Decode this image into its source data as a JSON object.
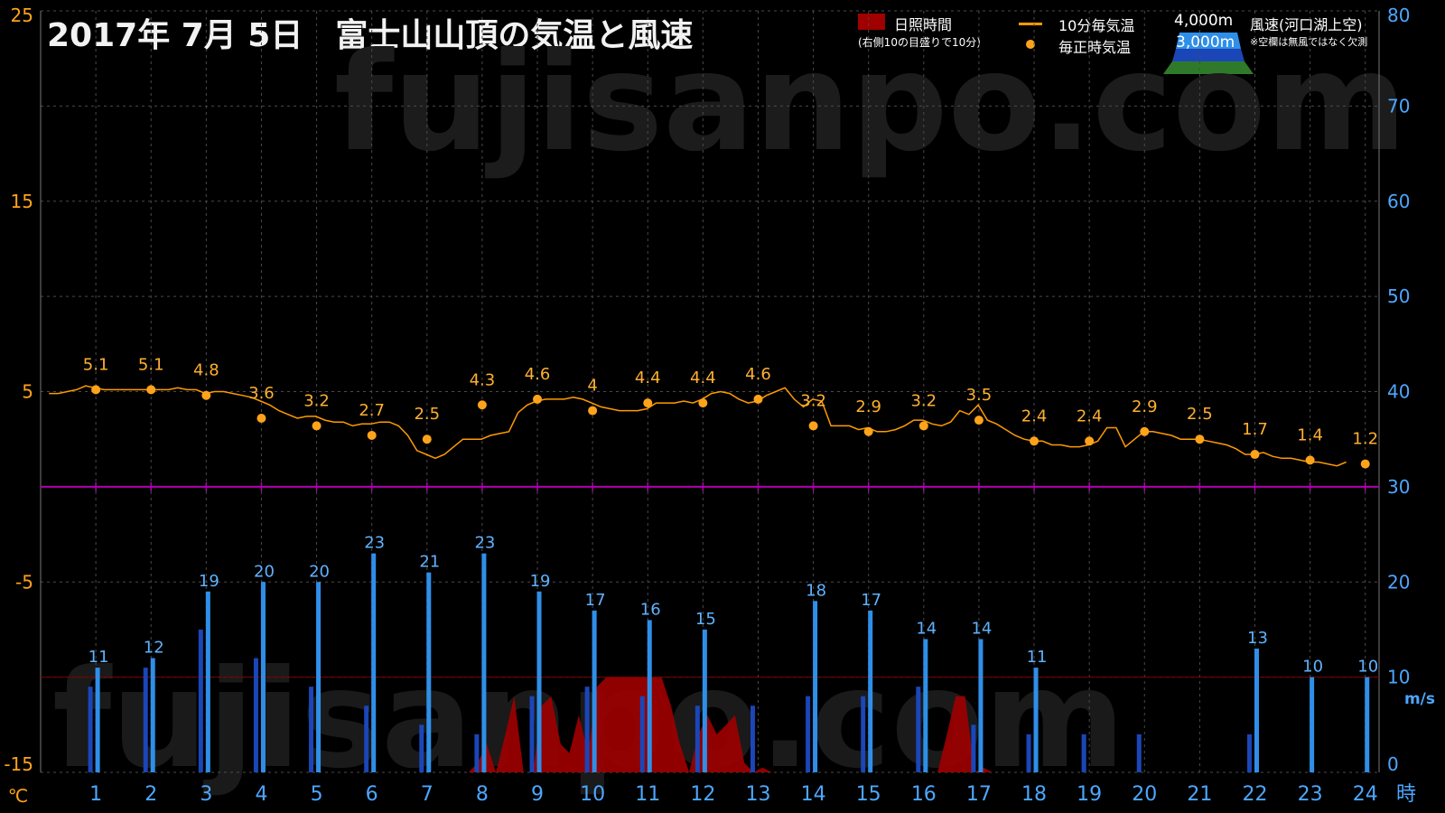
{
  "title": "2017年 7月 5日　富士山山頂の気温と風速",
  "legend": {
    "sunshine": "日照時間",
    "sunshine_note": "(右側10の目盛りで10分)",
    "temp10": "10分毎気温",
    "temp_hourly": "毎正時気温",
    "alt4000": "4,000m",
    "alt3000": "3,000m",
    "wind_label": "風速(河口湖上空)",
    "wind_note": "※空欄は無風ではなく欠測"
  },
  "watermark": "fujisanpo.com",
  "colors": {
    "temp": "#ff9a00",
    "temp_dot": "#ffa31a",
    "wind4000": "#2f8fe8",
    "wind3000": "#1a46b8",
    "sunshine": "#a00000",
    "zero_line": "#b000b0",
    "left_axis": "#ffa31a",
    "right_axis": "#4da6ff"
  },
  "chart_data": {
    "type": "line",
    "x_axis": {
      "ticks": [
        "1",
        "2",
        "3",
        "4",
        "5",
        "6",
        "7",
        "8",
        "9",
        "10",
        "11",
        "12",
        "13",
        "14",
        "15",
        "16",
        "17",
        "18",
        "19",
        "20",
        "21",
        "22",
        "23",
        "24"
      ],
      "unit": "時"
    },
    "y_left": {
      "ticks": [
        "25",
        "15",
        "5",
        "-5",
        "-15"
      ],
      "unit": "℃",
      "range": [
        -15,
        25
      ]
    },
    "y_right": {
      "ticks": [
        "80",
        "70",
        "60",
        "50",
        "40",
        "30",
        "20",
        "10",
        "0"
      ],
      "unit": "m/s",
      "range": [
        0,
        80
      ]
    },
    "series": [
      {
        "name": "10分毎気温",
        "type": "line",
        "axis": "left",
        "x_start": 0.15,
        "x_step": 0.1667,
        "values": [
          4.9,
          4.9,
          5.0,
          5.1,
          5.3,
          5.2,
          5.1,
          5.1,
          5.1,
          5.1,
          5.1,
          5.1,
          5.1,
          5.1,
          5.2,
          5.1,
          5.1,
          4.9,
          5.0,
          5.0,
          4.9,
          4.8,
          4.7,
          4.5,
          4.3,
          4.0,
          3.8,
          3.6,
          3.7,
          3.7,
          3.5,
          3.4,
          3.4,
          3.2,
          3.3,
          3.3,
          3.4,
          3.4,
          3.2,
          2.7,
          1.9,
          1.7,
          1.5,
          1.7,
          2.1,
          2.5,
          2.5,
          2.5,
          2.7,
          2.8,
          2.9,
          3.9,
          4.3,
          4.5,
          4.6,
          4.6,
          4.6,
          4.7,
          4.6,
          4.4,
          4.2,
          4.1,
          4.0,
          4.0,
          4.0,
          4.1,
          4.4,
          4.4,
          4.4,
          4.5,
          4.4,
          4.6,
          4.9,
          5.0,
          4.9,
          4.6,
          4.4,
          4.5,
          4.8,
          5.0,
          5.2,
          4.6,
          4.2,
          4.6,
          4.5,
          3.2,
          3.2,
          3.2,
          3.0,
          3.1,
          2.9,
          2.9,
          3.0,
          3.2,
          3.5,
          3.5,
          3.3,
          3.2,
          3.4,
          4.0,
          3.8,
          4.3,
          3.5,
          3.3,
          3.0,
          2.7,
          2.5,
          2.4,
          2.4,
          2.2,
          2.2,
          2.1,
          2.1,
          2.2,
          2.4,
          3.1,
          3.1,
          2.1,
          2.5,
          2.9,
          2.9,
          2.8,
          2.7,
          2.5,
          2.5,
          2.5,
          2.4,
          2.3,
          2.2,
          2.0,
          1.7,
          1.7,
          1.8,
          1.6,
          1.5,
          1.5,
          1.4,
          1.3,
          1.3,
          1.2,
          1.1,
          1.3
        ]
      },
      {
        "name": "毎正時気温",
        "type": "scatter",
        "axis": "left",
        "x": [
          1,
          2,
          3,
          4,
          5,
          6,
          7,
          8,
          9,
          10,
          11,
          12,
          13,
          14,
          15,
          16,
          17,
          18,
          19,
          20,
          21,
          22,
          23,
          24
        ],
        "values": [
          5.1,
          5.1,
          4.8,
          3.6,
          3.2,
          2.7,
          2.5,
          4.3,
          4.6,
          4,
          4.4,
          4.4,
          4.6,
          3.2,
          2.9,
          3.2,
          3.5,
          2.4,
          2.4,
          2.9,
          2.5,
          1.7,
          1.4,
          1.2
        ],
        "labels": [
          "5.1",
          "5.1",
          "4.8",
          "3.6",
          "3.2",
          "2.7",
          "2.5",
          "4.3",
          "4.6",
          "4",
          "4.4",
          "4.4",
          "4.6",
          "3.2",
          "2.9",
          "3.2",
          "3.5",
          "2.4",
          "2.4",
          "2.9",
          "2.5",
          "1.7",
          "1.4",
          "1.2"
        ]
      },
      {
        "name": "4,000m",
        "type": "bar",
        "axis": "right",
        "x": [
          1,
          2,
          3,
          4,
          5,
          6,
          7,
          8,
          9,
          10,
          11,
          12,
          14,
          15,
          16,
          17,
          18,
          22,
          23,
          24
        ],
        "values": [
          11,
          12,
          19,
          20,
          20,
          23,
          21,
          23,
          19,
          17,
          16,
          15,
          18,
          17,
          14,
          14,
          11,
          13,
          10,
          10
        ],
        "labels": [
          "11",
          "12",
          "19",
          "20",
          "20",
          "23",
          "21",
          "23",
          "19",
          "17",
          "16",
          "15",
          "18",
          "17",
          "14",
          "14",
          "11",
          "13",
          "10",
          "10"
        ]
      },
      {
        "name": "3,000m",
        "type": "bar",
        "axis": "right",
        "x": [
          1,
          2,
          3,
          4,
          5,
          6,
          7,
          8,
          9,
          10,
          11,
          12,
          13,
          14,
          15,
          16,
          17,
          18,
          19,
          20,
          22
        ],
        "values": [
          9,
          11,
          15,
          12,
          9,
          7,
          5,
          4,
          8,
          9,
          8,
          7,
          7,
          8,
          8,
          9,
          5,
          4,
          4,
          4,
          4
        ]
      },
      {
        "name": "日照時間",
        "type": "area",
        "axis": "right",
        "note": "minutes per 10-min interval, 10 = right-axis tick 10",
        "x": [
          7.75,
          7.92,
          8.08,
          8.25,
          8.42,
          8.58,
          8.75,
          8.92,
          9.08,
          9.25,
          9.42,
          9.58,
          9.75,
          9.92,
          10.08,
          10.25,
          10.42,
          10.58,
          10.75,
          10.92,
          11.08,
          11.25,
          11.42,
          11.58,
          11.75,
          11.92,
          12.08,
          12.25,
          12.42,
          12.58,
          12.75,
          12.92,
          13.08,
          13.25,
          16.25,
          16.42,
          16.58,
          16.75,
          16.92,
          17.08,
          17.25
        ],
        "values": [
          0,
          1,
          3,
          0,
          4,
          8,
          0,
          0,
          7,
          8,
          3,
          2,
          6,
          2,
          9,
          10,
          10,
          10,
          10,
          10,
          10,
          10,
          7,
          3,
          0,
          4,
          6,
          4,
          5,
          6,
          1,
          0,
          0.5,
          0,
          0,
          4,
          8,
          8,
          0,
          0.5,
          0
        ]
      }
    ]
  }
}
